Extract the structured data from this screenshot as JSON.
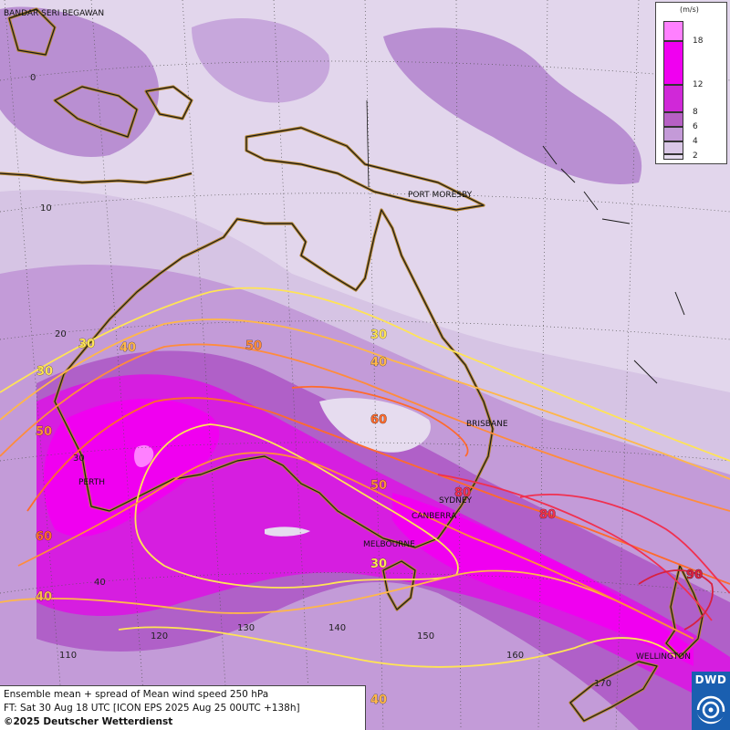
{
  "map": {
    "top_left_label": "BANDAR SERI BEGAWAN",
    "cities": [
      {
        "name": "PORT MORESBY"
      },
      {
        "name": "BRISBANE"
      },
      {
        "name": "PERTH"
      },
      {
        "name": "SYDNEY"
      },
      {
        "name": "CANBERRA"
      },
      {
        "name": "MELBOURNE"
      },
      {
        "name": "WELLINGTON"
      }
    ],
    "latitude_labels": [
      "0",
      "10",
      "20",
      "30",
      "40"
    ],
    "longitude_labels": [
      "110",
      "120",
      "130",
      "140",
      "150",
      "160",
      "170"
    ],
    "contour_labels": [
      "30",
      "40",
      "50",
      "60",
      "80",
      "90"
    ]
  },
  "legend": {
    "unit": "(m/s)",
    "ticks": [
      "18",
      "12",
      "8",
      "6",
      "4",
      "2"
    ],
    "colors": [
      "#ff80ff",
      "#f000f0",
      "#d028d8",
      "#b660c4",
      "#c49ad8",
      "#d9c7e6",
      "#e6dcef"
    ]
  },
  "info": {
    "line1": "Ensemble mean + spread of Mean wind speed 250 hPa",
    "line2": "FT: Sat 30 Aug 18 UTC [ICON EPS 2025 Aug 25 00UTC +138h]",
    "copyright": "©2025 Deutscher Wetterdienst"
  },
  "logo": {
    "text": "DWD"
  },
  "colors": {
    "contour_30": "#ffe455",
    "contour_40": "#ffb74a",
    "contour_50": "#ff8c3c",
    "contour_60": "#ff6a2c",
    "contour_80": "#f03050",
    "contour_90": "#d82040",
    "coast": "#1a1a1a",
    "coast_halo": "#b7872f",
    "background": "#d6c4e4"
  }
}
